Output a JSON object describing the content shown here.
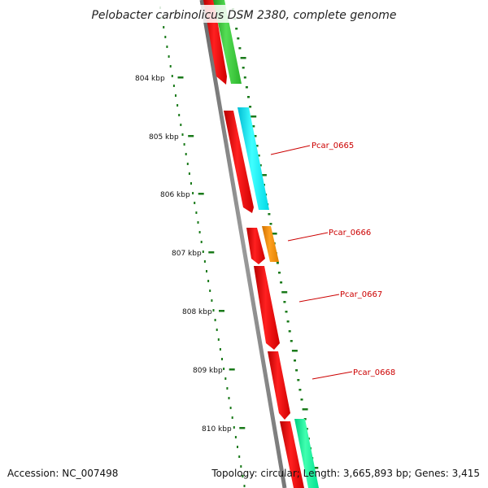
{
  "title": "Pelobacter carbinolicus DSM 2380, complete genome",
  "ticks": [
    "804 kbp",
    "805 kbp",
    "806 kbp",
    "807 kbp",
    "808 kbp",
    "809 kbp",
    "810 kbp"
  ],
  "gene_labels": [
    "Pcar_0665",
    "Pcar_0666",
    "Pcar_0667",
    "Pcar_0668"
  ],
  "footer": {
    "accession": "Accession: NC_007498",
    "summary": "Topology: circular; Length: 3,665,893 bp; Genes: 3,415"
  },
  "colors": {
    "backbone": "#8a8a8a",
    "cds": "#ff0000",
    "gene_0665": "#00ffff",
    "gene_0666": "#ff9900",
    "gene_upstream": "#33cc33",
    "gene_downstream": "#00ff99",
    "tick_mark": "#1a7a1a",
    "label": "#cc0000"
  }
}
